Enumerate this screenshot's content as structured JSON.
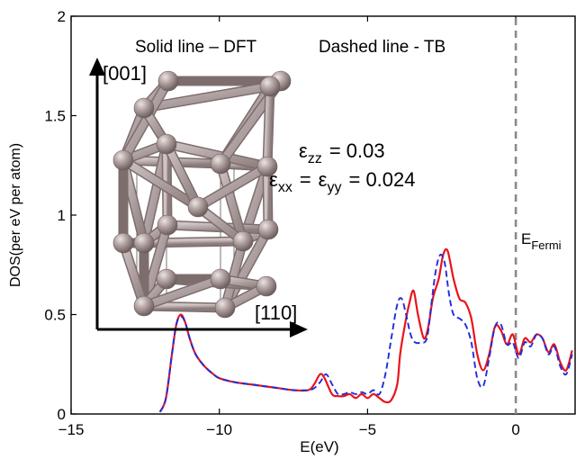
{
  "chart_data": {
    "type": "line",
    "title": "",
    "xlabel": "E(eV)",
    "ylabel": "DOS(per eV per atom)",
    "xlim": [
      -15,
      2
    ],
    "ylim": [
      0,
      2
    ],
    "x_ticks": [
      -15,
      -10,
      -5,
      0
    ],
    "x_tick_labels": [
      "−15",
      "−10",
      "−5",
      "0"
    ],
    "y_ticks": [
      0,
      0.5,
      1,
      1.5,
      2
    ],
    "y_tick_labels": [
      "0",
      "0.5",
      "1",
      "1.5",
      "2"
    ],
    "grid": false,
    "annotations": {
      "legend_solid": "Solid line – DFT",
      "legend_dashed": "Dashed line - TB",
      "axis_001": "[001]",
      "axis_110": "[110]",
      "eps_zz_symbol": "ε",
      "eps_zz_sub": "zz",
      "eps_zz_value": "=  0.03",
      "eps_xx_symbol": "ε",
      "eps_xx_sub": "xx",
      "eps_eq": "=",
      "eps_yy_symbol": "ε",
      "eps_yy_sub": "yy",
      "eps_xy_value": "=  0.024",
      "fermi_main": "E",
      "fermi_sub": "Fermi"
    },
    "fermi_level": 0,
    "series": [
      {
        "name": "DFT",
        "style": "solid",
        "color": "#e8141c",
        "x": [
          -12.0,
          -11.8,
          -11.6,
          -11.45,
          -11.3,
          -11.15,
          -11.0,
          -10.8,
          -10.5,
          -10.2,
          -10.0,
          -9.5,
          -9.0,
          -8.5,
          -8.0,
          -7.5,
          -7.0,
          -6.8,
          -6.6,
          -6.45,
          -6.2,
          -6.0,
          -5.8,
          -5.6,
          -5.4,
          -5.2,
          -5.0,
          -4.8,
          -4.6,
          -4.4,
          -4.2,
          -4.0,
          -3.9,
          -3.75,
          -3.6,
          -3.45,
          -3.3,
          -3.1,
          -2.95,
          -2.8,
          -2.6,
          -2.45,
          -2.3,
          -2.1,
          -1.9,
          -1.7,
          -1.5,
          -1.3,
          -1.1,
          -0.9,
          -0.7,
          -0.5,
          -0.3,
          -0.1,
          0.1,
          0.3,
          0.5,
          0.7,
          0.9,
          1.1,
          1.3,
          1.5,
          1.7,
          1.9
        ],
        "values": [
          0.01,
          0.08,
          0.3,
          0.45,
          0.5,
          0.46,
          0.38,
          0.3,
          0.24,
          0.2,
          0.18,
          0.16,
          0.15,
          0.14,
          0.13,
          0.12,
          0.12,
          0.15,
          0.2,
          0.18,
          0.1,
          0.09,
          0.09,
          0.1,
          0.08,
          0.1,
          0.08,
          0.1,
          0.08,
          0.06,
          0.07,
          0.15,
          0.3,
          0.44,
          0.55,
          0.62,
          0.5,
          0.38,
          0.44,
          0.58,
          0.68,
          0.8,
          0.82,
          0.68,
          0.58,
          0.56,
          0.48,
          0.3,
          0.22,
          0.3,
          0.44,
          0.42,
          0.35,
          0.4,
          0.3,
          0.38,
          0.36,
          0.4,
          0.38,
          0.31,
          0.35,
          0.26,
          0.22,
          0.32
        ]
      },
      {
        "name": "TB",
        "style": "dashed",
        "color": "#1f2ddc",
        "x": [
          -12.0,
          -11.8,
          -11.6,
          -11.45,
          -11.3,
          -11.15,
          -11.0,
          -10.8,
          -10.5,
          -10.2,
          -10.0,
          -9.5,
          -9.0,
          -8.5,
          -8.0,
          -7.5,
          -7.0,
          -6.8,
          -6.6,
          -6.4,
          -6.2,
          -6.0,
          -5.8,
          -5.6,
          -5.4,
          -5.2,
          -5.0,
          -4.8,
          -4.6,
          -4.4,
          -4.2,
          -4.0,
          -3.85,
          -3.7,
          -3.55,
          -3.4,
          -3.2,
          -3.0,
          -2.85,
          -2.7,
          -2.55,
          -2.4,
          -2.25,
          -2.1,
          -1.9,
          -1.7,
          -1.5,
          -1.3,
          -1.1,
          -0.9,
          -0.7,
          -0.5,
          -0.3,
          -0.1,
          0.1,
          0.3,
          0.5,
          0.7,
          0.9,
          1.1,
          1.3,
          1.5,
          1.7,
          1.9
        ],
        "values": [
          0.01,
          0.08,
          0.3,
          0.45,
          0.49,
          0.46,
          0.38,
          0.3,
          0.24,
          0.2,
          0.18,
          0.16,
          0.15,
          0.14,
          0.13,
          0.12,
          0.12,
          0.13,
          0.16,
          0.2,
          0.15,
          0.1,
          0.1,
          0.11,
          0.1,
          0.11,
          0.1,
          0.12,
          0.1,
          0.2,
          0.38,
          0.55,
          0.58,
          0.5,
          0.4,
          0.36,
          0.36,
          0.38,
          0.55,
          0.72,
          0.8,
          0.76,
          0.6,
          0.5,
          0.48,
          0.45,
          0.36,
          0.18,
          0.14,
          0.28,
          0.44,
          0.45,
          0.35,
          0.36,
          0.28,
          0.36,
          0.34,
          0.4,
          0.38,
          0.3,
          0.34,
          0.24,
          0.2,
          0.3
        ]
      }
    ]
  }
}
